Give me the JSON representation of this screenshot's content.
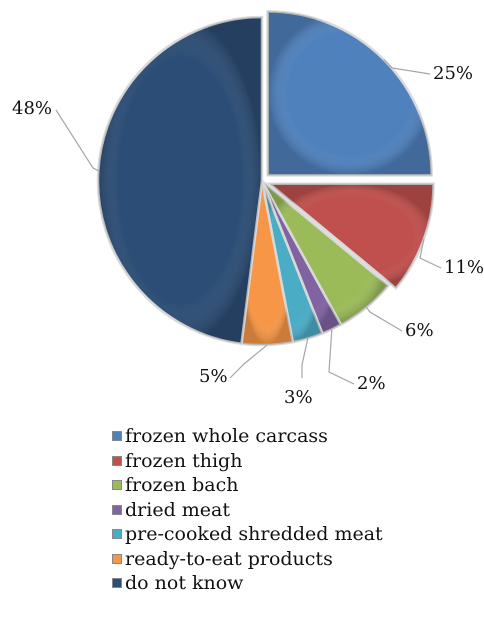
{
  "chart_data": {
    "type": "pie",
    "title": "",
    "categories": [
      "frozen whole carcass",
      "frozen thigh",
      "frozen bach",
      "dried meat",
      "pre-cooked shredded meat",
      "ready-to-eat products",
      "do not know"
    ],
    "values": [
      25,
      11,
      6,
      2,
      3,
      5,
      48
    ],
    "labels": [
      "25%",
      "11%",
      "6%",
      "2%",
      "3%",
      "5%",
      "48%"
    ],
    "colors": [
      "#4f81bd",
      "#c0504d",
      "#9bbb59",
      "#8064a2",
      "#4bacc6",
      "#f79646",
      "#2c4d75"
    ],
    "exploded": [
      true,
      true,
      false,
      false,
      false,
      false,
      false
    ],
    "legend_position": "bottom",
    "start_angle": "top",
    "direction": "clockwise"
  }
}
